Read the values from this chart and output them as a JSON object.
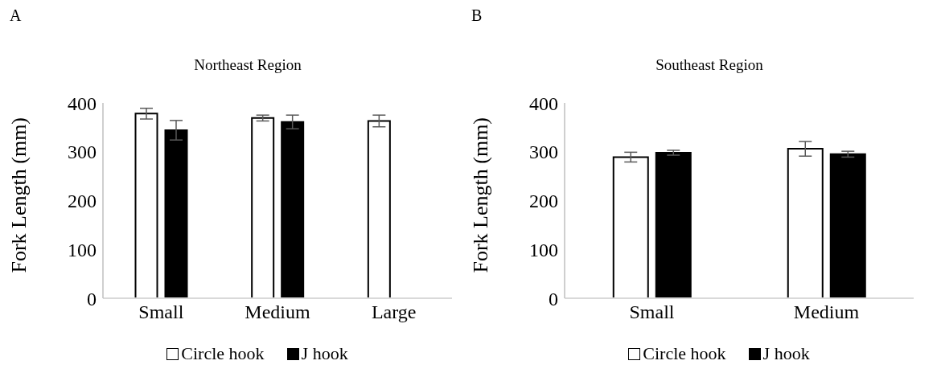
{
  "chart_data": [
    {
      "type": "bar",
      "title": "Northeast Region",
      "ylabel": "Fork Length (mm)",
      "annotations": [
        "A"
      ],
      "categories": [
        "Small",
        "Medium",
        "Large"
      ],
      "ylim": [
        0,
        400
      ],
      "yticks": [
        0,
        100,
        200,
        300,
        400
      ],
      "grid": false,
      "legend": "bottom",
      "series": [
        {
          "name": "Circle hook",
          "color": "#ffffff",
          "values": [
            378,
            369,
            363
          ],
          "errors": [
            11,
            6,
            12
          ]
        },
        {
          "name": "J hook",
          "color": "#000000",
          "values": [
            344,
            361,
            null
          ],
          "errors": [
            20,
            14,
            null
          ]
        }
      ]
    },
    {
      "type": "bar",
      "title": "Southeast Region",
      "ylabel": "Fork Length (mm)",
      "annotations": [
        "B"
      ],
      "categories": [
        "Small",
        "Medium"
      ],
      "ylim": [
        0,
        400
      ],
      "yticks": [
        0,
        100,
        200,
        300,
        400
      ],
      "grid": false,
      "legend": "bottom",
      "series": [
        {
          "name": "Circle hook",
          "color": "#ffffff",
          "values": [
            289,
            306
          ],
          "errors": [
            10,
            15
          ]
        },
        {
          "name": "J hook",
          "color": "#000000",
          "values": [
            298,
            295
          ],
          "errors": [
            5,
            6
          ]
        }
      ]
    }
  ]
}
